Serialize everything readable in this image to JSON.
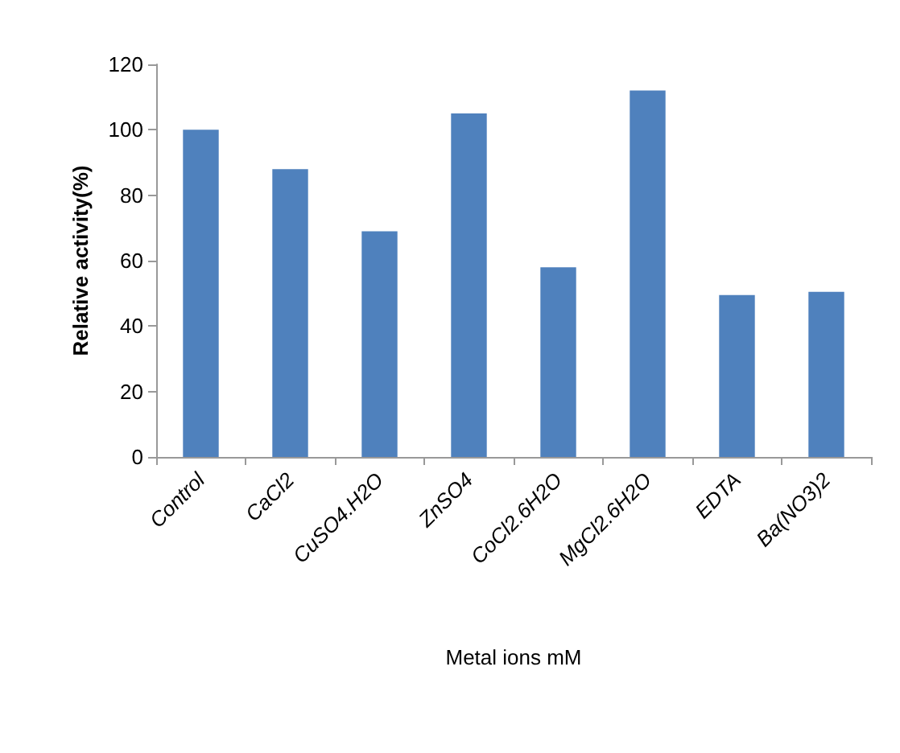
{
  "chart_data": {
    "type": "bar",
    "xlabel": "Metal ions mM",
    "ylabel": "Relative activity(%)",
    "categories": [
      "Control",
      "CaCl2",
      "CuSO4.H2O",
      "ZnSO4",
      "CoCl2.6H2O",
      "MgCl2.6H2O",
      "EDTA",
      "Ba(NO3)2"
    ],
    "values": [
      100,
      88,
      69,
      105,
      58,
      112,
      49.5,
      50.5
    ],
    "color": "#4f81bd",
    "ylim": [
      0,
      120
    ],
    "yticks": [
      0,
      20,
      40,
      60,
      80,
      100,
      120
    ]
  }
}
